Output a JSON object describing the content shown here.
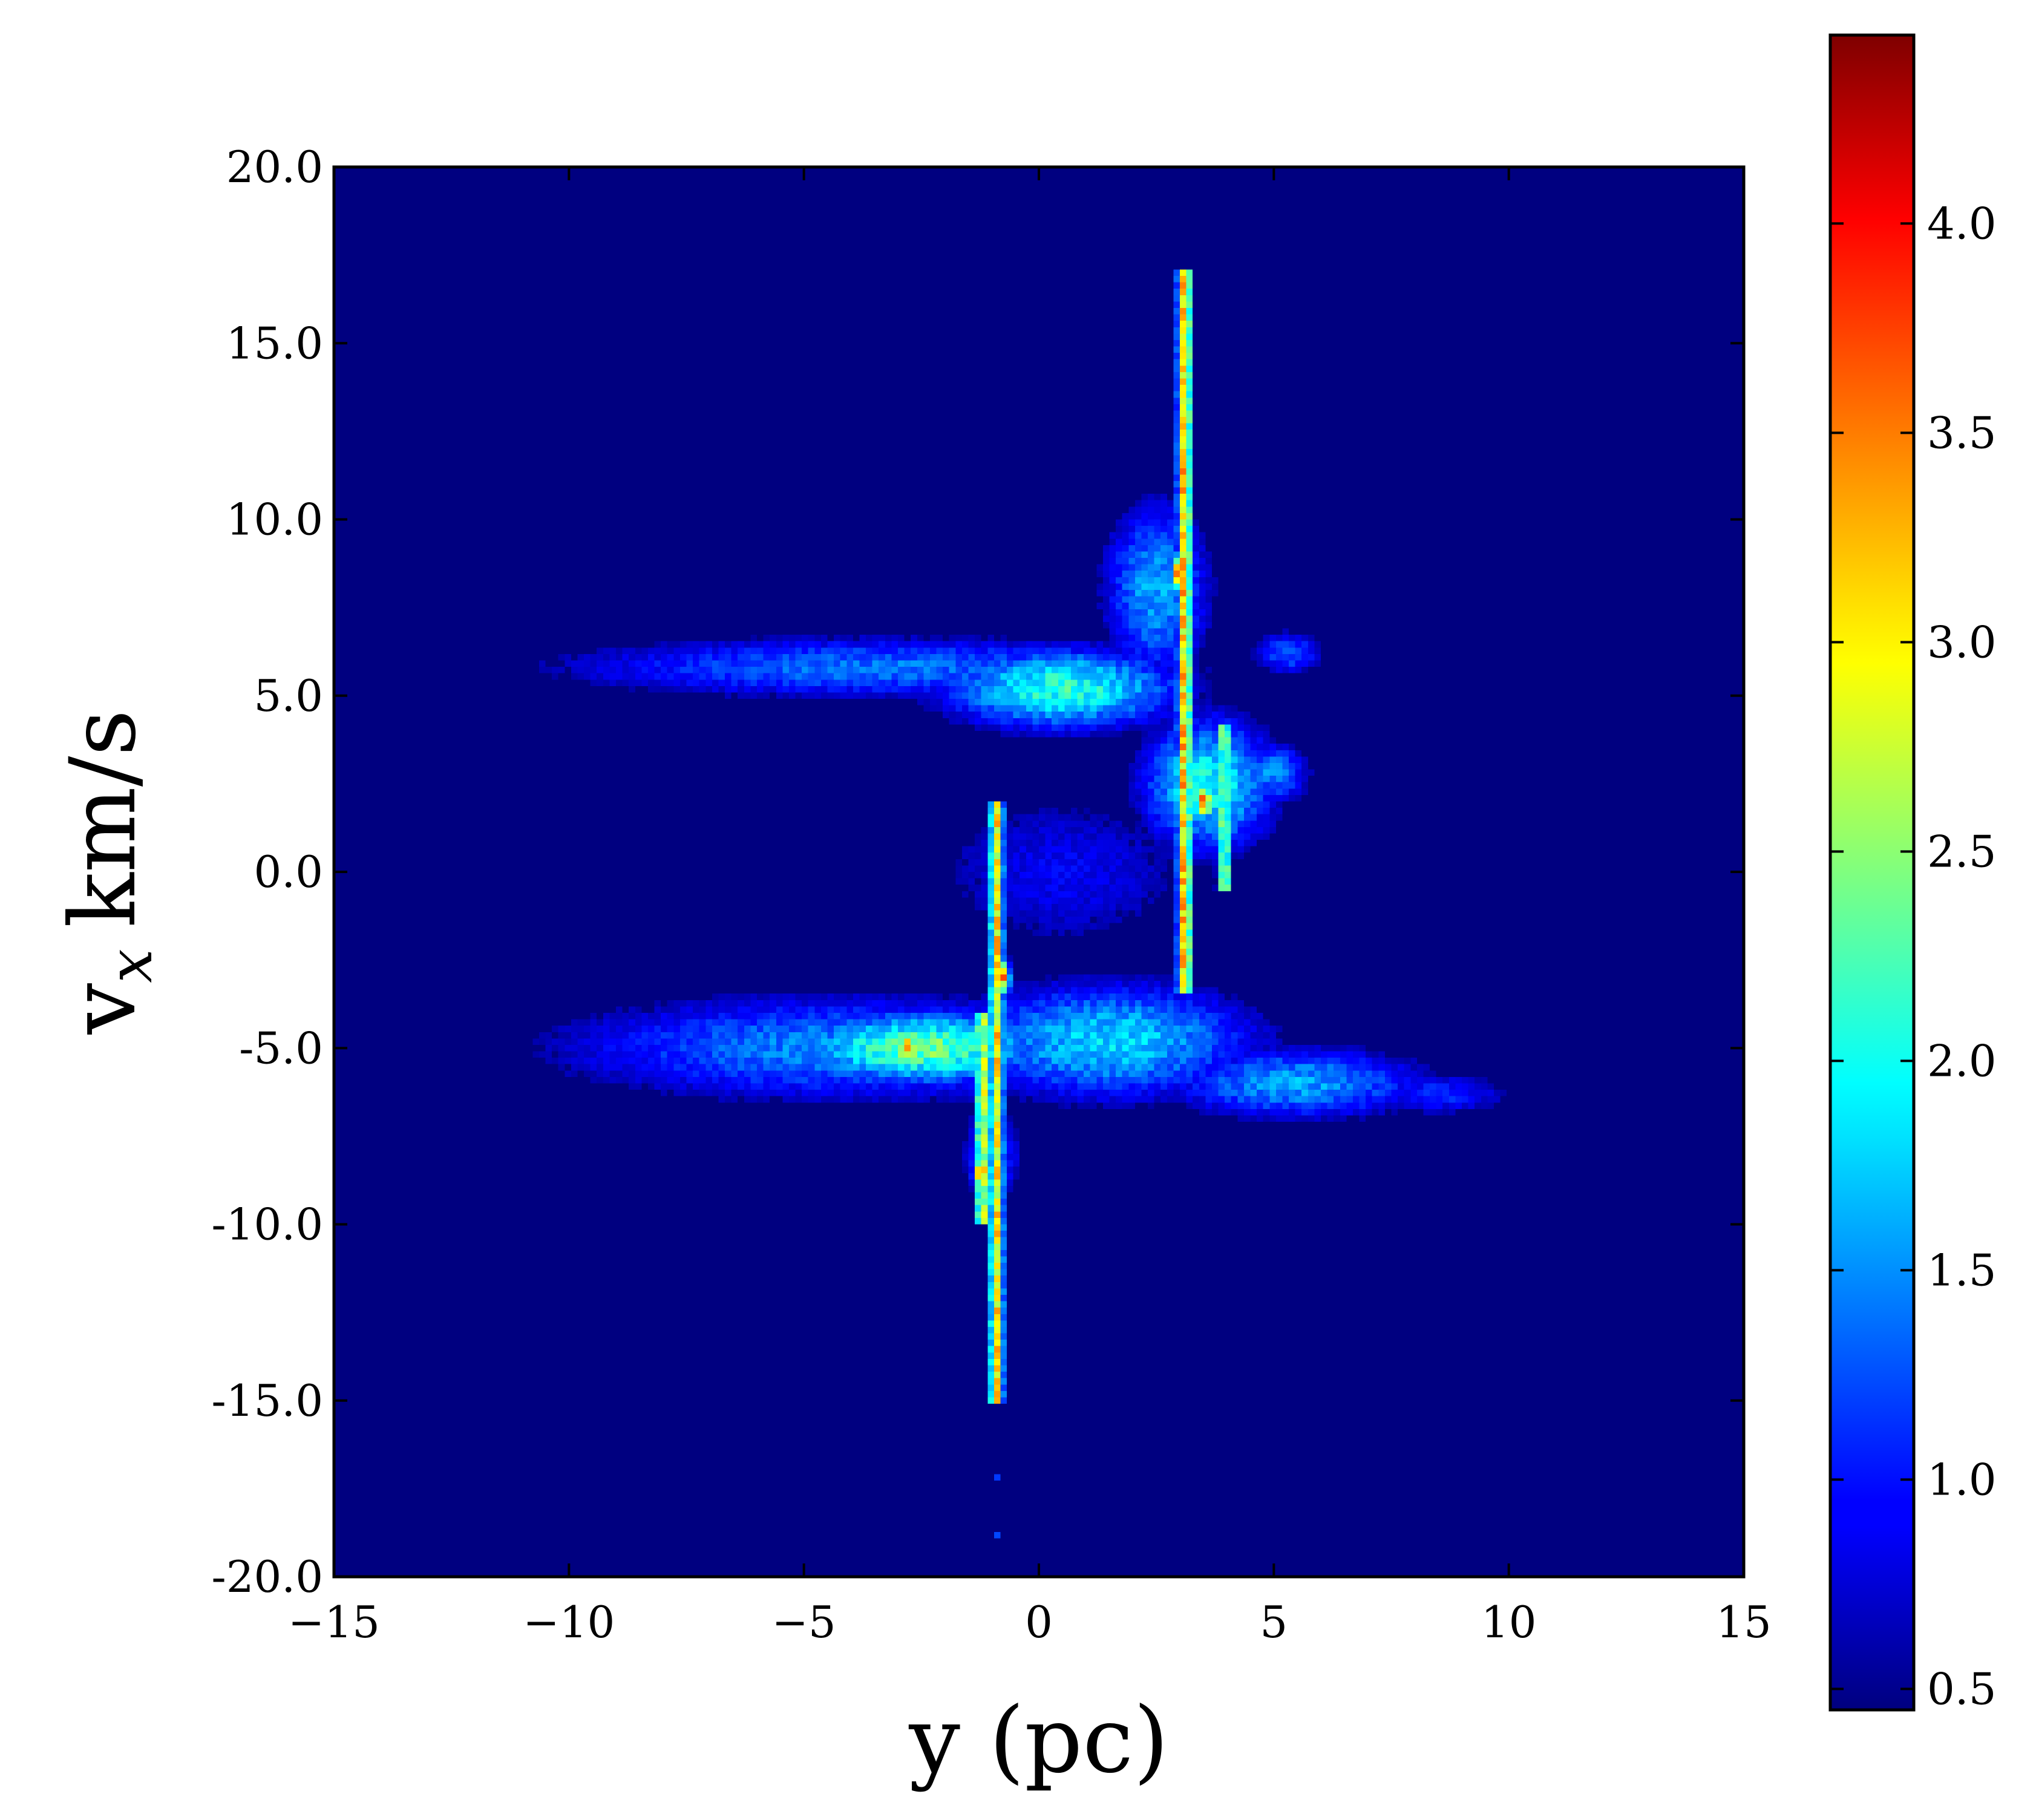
{
  "chart_data": {
    "type": "heatmap",
    "title": "",
    "xlabel": "y (pc)",
    "ylabel_main": "v",
    "ylabel_sub": "x",
    "ylabel_unit": "km/s",
    "xlim": [
      -15,
      15
    ],
    "ylim": [
      -20,
      20
    ],
    "x_ticks": [
      -15,
      -10,
      -5,
      0,
      5,
      10,
      15
    ],
    "x_tick_labels": [
      "−15",
      "−10",
      "−5",
      "0",
      "5",
      "10",
      "15"
    ],
    "y_ticks": [
      20,
      15,
      10,
      5,
      0,
      -5,
      -10,
      -15,
      -20
    ],
    "y_tick_labels": [
      "20.0",
      "15.0",
      "10.0",
      "5.0",
      "0.0",
      "-5.0",
      "-10.0",
      "-15.0",
      "-20.0"
    ],
    "grid": false,
    "colormap": "jet",
    "background_color": "#00007f",
    "colorbar": {
      "range": [
        0.45,
        4.45
      ],
      "ticks": [
        0.5,
        1.0,
        1.5,
        2.0,
        2.5,
        3.0,
        3.5,
        4.0
      ],
      "tick_labels": [
        "0.5",
        "1.0",
        "1.5",
        "2.0",
        "2.5",
        "3.0",
        "3.5",
        "4.0"
      ]
    },
    "features": [
      {
        "type": "blob",
        "y": -3.5,
        "vx": 5.8,
        "sy": 5.5,
        "sv": 0.7,
        "value": 1.4
      },
      {
        "type": "blob",
        "y": 0.5,
        "vx": 5.2,
        "sy": 2.0,
        "sv": 0.9,
        "value": 2.1
      },
      {
        "type": "blob",
        "y": 2.5,
        "vx": 8.0,
        "sy": 0.9,
        "sv": 2.0,
        "value": 1.6
      },
      {
        "type": "blob",
        "y": 3.6,
        "vx": 2.5,
        "sy": 1.1,
        "sv": 1.5,
        "value": 2.0
      },
      {
        "type": "blob",
        "y": 5.3,
        "vx": 6.2,
        "sy": 0.6,
        "sv": 0.5,
        "value": 1.3
      },
      {
        "type": "blob",
        "y": 5.0,
        "vx": 2.8,
        "sy": 0.6,
        "sv": 0.7,
        "value": 1.5
      },
      {
        "type": "blob",
        "y": -4.0,
        "vx": -5.0,
        "sy": 5.0,
        "sv": 1.2,
        "value": 1.5
      },
      {
        "type": "blob",
        "y": -2.5,
        "vx": -5.0,
        "sy": 2.0,
        "sv": 0.8,
        "value": 2.4
      },
      {
        "type": "blob",
        "y": 1.5,
        "vx": -4.8,
        "sy": 2.5,
        "sv": 1.3,
        "value": 1.8
      },
      {
        "type": "blob",
        "y": 5.5,
        "vx": -6.0,
        "sy": 2.2,
        "sv": 0.8,
        "value": 1.6
      },
      {
        "type": "blob",
        "y": 8.5,
        "vx": -6.3,
        "sy": 1.3,
        "sv": 0.5,
        "value": 1.1
      },
      {
        "type": "blob",
        "y": 0.5,
        "vx": 0.0,
        "sy": 2.5,
        "sv": 2.0,
        "value": 0.9
      },
      {
        "type": "blob",
        "y": -1.0,
        "vx": -8.0,
        "sy": 0.5,
        "sv": 1.2,
        "value": 1.3
      },
      {
        "type": "filament",
        "y": 3.1,
        "vx_min": -3.5,
        "vx_max": 17.0,
        "value": 3.2
      },
      {
        "type": "filament",
        "y": -0.9,
        "vx_min": -15.0,
        "vx_max": 2.0,
        "value": 3.0
      },
      {
        "type": "filament",
        "y": 3.95,
        "vx_min": -0.5,
        "vx_max": 4.2,
        "value": 2.5
      },
      {
        "type": "filament",
        "y": -1.2,
        "vx_min": -10.0,
        "vx_max": -4.0,
        "value": 2.8
      },
      {
        "type": "hotspot",
        "y": 3.0,
        "vx": 8.5,
        "value": 3.6
      },
      {
        "type": "hotspot",
        "y": 3.5,
        "vx": 2.0,
        "value": 3.7
      },
      {
        "type": "hotspot",
        "y": -0.8,
        "vx": -3.0,
        "value": 3.4
      },
      {
        "type": "hotspot",
        "y": -1.2,
        "vx": -8.5,
        "value": 3.5
      },
      {
        "type": "hotspot",
        "y": -2.8,
        "vx": -5.0,
        "value": 3.2
      },
      {
        "type": "point",
        "y": -0.9,
        "vx": -17.2,
        "value": 1.3
      },
      {
        "type": "point",
        "y": -0.9,
        "vx": -18.8,
        "value": 1.2
      }
    ]
  }
}
